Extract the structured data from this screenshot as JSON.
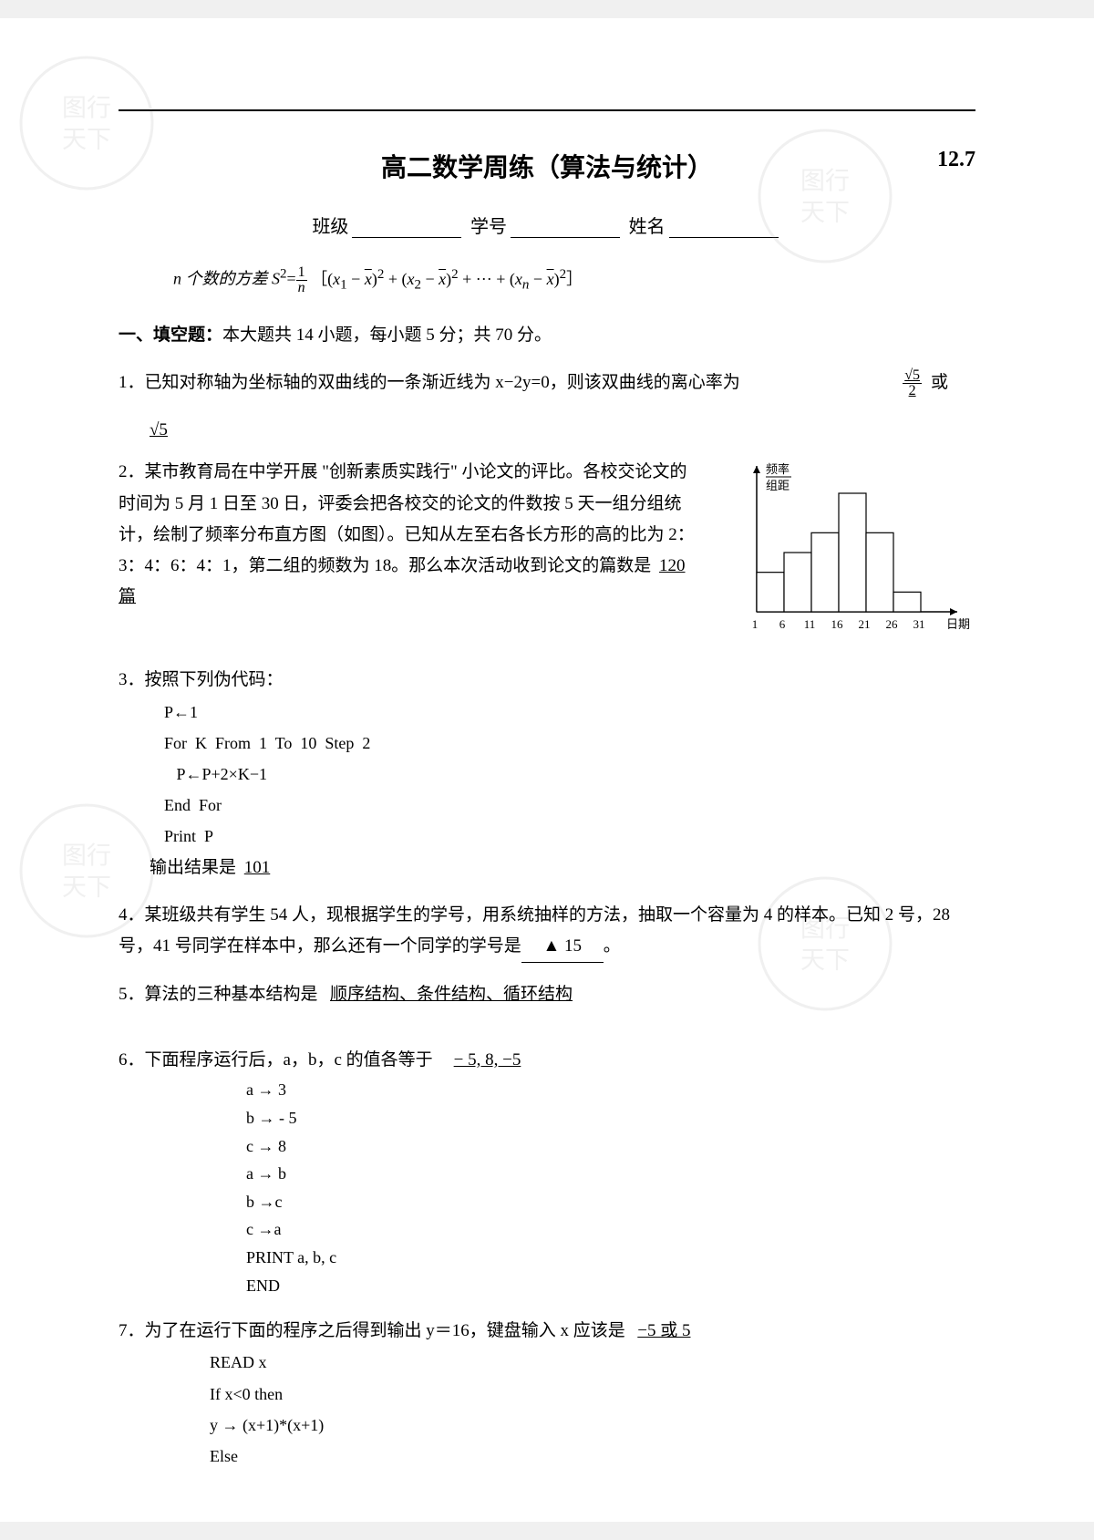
{
  "page": {
    "title": "高二数学周练（算法与统计）",
    "date": "12.7",
    "class_label": "班级",
    "id_label": "学号",
    "name_label": "姓名"
  },
  "formula": {
    "prefix": "n 个数的方差 S",
    "sup": "2",
    "eq": "=",
    "frac_num": "1",
    "frac_den": "n",
    "body": "［(x₁ − x̄)² + (x₂ − x̄)² + ··· + (xₙ − x̄)²］"
  },
  "section1": {
    "label": "一、填空题：",
    "desc": "本大题共 14 小题，每小题 5 分；共 70 分。"
  },
  "q1": {
    "num": "1．",
    "text": "已知对称轴为坐标轴的双曲线的一条渐近线为 x−2y=0，则该双曲线的离心率为",
    "answer_a_num": "√5",
    "answer_a_den": "2",
    "or": "或",
    "answer_b": "√5"
  },
  "q2": {
    "num": "2．",
    "text": "某市教育局在中学开展 \"创新素质实践行\" 小论文的评比。各校交论文的时间为 5 月 1 日至 30 日，评委会把各校交的论文的件数按 5 天一组分组统计，绘制了频率分布直方图（如图）。已知从左至右各长方形的高的比为 2：3：4：6：4：1，第二组的频数为 18。那么本次活动收到论文的篇数是",
    "answer": "120 篇"
  },
  "q3": {
    "num": "3．",
    "text": "按照下列伪代码：",
    "code": [
      "P←1",
      "For  K  From  1  To  10  Step  2",
      "   P←P+2×K−1",
      "End  For",
      "Print  P"
    ],
    "result_label": "输出结果是",
    "answer": "101"
  },
  "q4": {
    "num": "4．",
    "text_a": "某班级共有学生 54 人，现根据学生的学号，用系统抽样的方法，抽取一个容量为 4 的样本。已知 2 号，28 号，41 号同学在样本中，那么还有一个同学的学号是",
    "triangle": "▲",
    "answer": "15",
    "period": "。"
  },
  "q5": {
    "num": "5．",
    "text": "算法的三种基本结构是",
    "answer": "顺序结构、条件结构、循环结构"
  },
  "q6": {
    "num": "6．",
    "text": "下面程序运行后，a，b，c 的值各等于",
    "answer": "− 5, 8, −5",
    "code": [
      "a → 3",
      "b  →  - 5",
      "c  →  8",
      "a  →  b",
      "b  →c",
      "c  →a",
      "PRINT   a, b, c",
      "END"
    ]
  },
  "q7": {
    "num": "7．",
    "text": "为了在运行下面的程序之后得到输出 y＝16，键盘输入 x 应该是",
    "answer": "−5 或 5",
    "code": [
      "READ x",
      "If   x<0   then",
      "    y →  (x+1)*(x+1)",
      "Else"
    ]
  },
  "histogram": {
    "type": "bar",
    "ylabel_line1": "频率",
    "ylabel_line2": "组距",
    "xlabel": "日期",
    "x_ticks": [
      "1",
      "6",
      "11",
      "16",
      "21",
      "26",
      "31"
    ],
    "heights": [
      2,
      3,
      4,
      6,
      4,
      1
    ],
    "bar_fill": "#ffffff",
    "bar_stroke": "#000000",
    "axis_color": "#000000",
    "font_size": 13
  },
  "colors": {
    "page_bg": "#ffffff",
    "text": "#000000",
    "watermark": "#b8b8b8"
  }
}
